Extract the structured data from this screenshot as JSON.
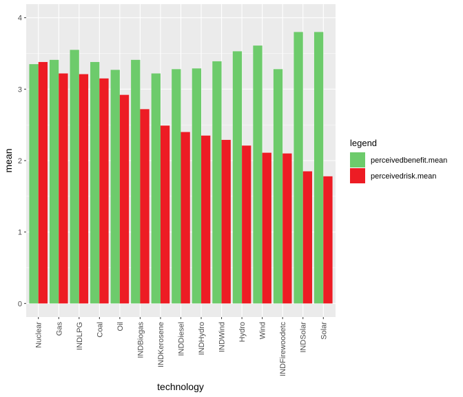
{
  "chart_data": {
    "type": "bar",
    "categories": [
      "Nuclear",
      "Gas",
      "INDLPG",
      "Coal",
      "Oil",
      "INDBiogas",
      "INDKerosene",
      "INDDiesel",
      "INDHydro",
      "INDWind",
      "Hydro",
      "Wind",
      "INDFirewoodetc",
      "INDSolar",
      "Solar"
    ],
    "series": [
      {
        "name": "perceivedbenefit.mean",
        "color": "#6DCB6B",
        "values": [
          3.35,
          3.41,
          3.55,
          3.38,
          3.27,
          3.41,
          3.22,
          3.28,
          3.29,
          3.39,
          3.53,
          3.61,
          3.28,
          3.8,
          3.8
        ]
      },
      {
        "name": "perceivedrisk.mean",
        "color": "#ED1C24",
        "values": [
          3.38,
          3.22,
          3.21,
          3.15,
          2.92,
          2.72,
          2.49,
          2.4,
          2.35,
          2.29,
          2.21,
          2.11,
          2.1,
          1.85,
          1.78
        ]
      }
    ],
    "xlabel": "technology",
    "ylabel": "mean",
    "yticks": [
      0,
      1,
      2,
      3,
      4
    ],
    "ylim": [
      -0.19,
      4.19
    ],
    "legend": {
      "title": "legend",
      "position": "right"
    },
    "grid": true,
    "panel_background": "#EBEBEB"
  }
}
